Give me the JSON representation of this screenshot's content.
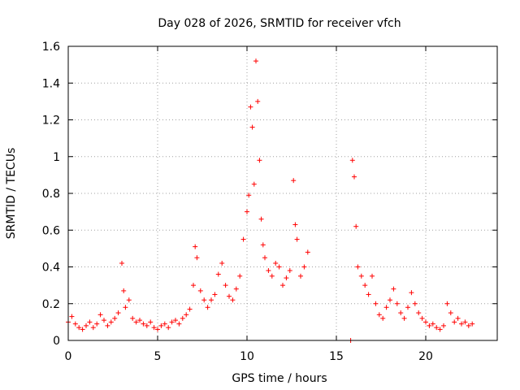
{
  "chart_data": {
    "type": "scatter",
    "title": "Day 028 of 2026, SRMTID for receiver vfch",
    "xlabel": "GPS time / hours",
    "ylabel": "SRMTID / TECUs",
    "xlim": [
      0,
      24
    ],
    "ylim": [
      0,
      1.6
    ],
    "xticks": [
      0,
      5,
      10,
      15,
      20
    ],
    "xtick_labels": [
      "0",
      "5",
      "10",
      "15",
      "20"
    ],
    "yticks": [
      0,
      0.2,
      0.4,
      0.6,
      0.8,
      1.0,
      1.2,
      1.4,
      1.6
    ],
    "ytick_labels": [
      "0",
      "0.2",
      "0.4",
      "0.6",
      "0.8",
      "1",
      "1.2",
      "1.4",
      "1.6"
    ],
    "grid": true,
    "marker": "+",
    "color": "#ff0000",
    "series": [
      {
        "name": "SRMTID",
        "x": [
          0.0,
          0.2,
          0.4,
          0.6,
          0.8,
          1.0,
          1.2,
          1.4,
          1.6,
          1.8,
          2.0,
          2.2,
          2.4,
          2.6,
          2.8,
          3.0,
          3.1,
          3.2,
          3.4,
          3.6,
          3.8,
          4.0,
          4.2,
          4.4,
          4.6,
          4.8,
          5.0,
          5.2,
          5.4,
          5.6,
          5.8,
          6.0,
          6.2,
          6.4,
          6.6,
          6.8,
          7.0,
          7.1,
          7.2,
          7.4,
          7.6,
          7.8,
          8.0,
          8.2,
          8.4,
          8.6,
          8.8,
          9.0,
          9.2,
          9.4,
          9.6,
          9.8,
          10.0,
          10.1,
          10.2,
          10.3,
          10.4,
          10.5,
          10.6,
          10.7,
          10.8,
          10.9,
          11.0,
          11.2,
          11.4,
          11.6,
          11.8,
          12.0,
          12.2,
          12.4,
          12.6,
          12.7,
          12.8,
          13.0,
          13.2,
          13.4,
          15.8,
          15.9,
          16.0,
          16.1,
          16.2,
          16.4,
          16.6,
          16.8,
          17.0,
          17.2,
          17.4,
          17.6,
          17.8,
          18.0,
          18.2,
          18.4,
          18.6,
          18.8,
          19.0,
          19.2,
          19.4,
          19.6,
          19.8,
          20.0,
          20.2,
          20.4,
          20.6,
          20.8,
          21.0,
          21.2,
          21.4,
          21.6,
          21.8,
          22.0,
          22.2,
          22.4,
          22.6
        ],
        "y": [
          0.1,
          0.13,
          0.09,
          0.07,
          0.06,
          0.08,
          0.1,
          0.07,
          0.09,
          0.14,
          0.11,
          0.08,
          0.1,
          0.12,
          0.15,
          0.42,
          0.27,
          0.18,
          0.22,
          0.12,
          0.1,
          0.11,
          0.09,
          0.08,
          0.1,
          0.07,
          0.06,
          0.08,
          0.09,
          0.07,
          0.1,
          0.11,
          0.09,
          0.12,
          0.14,
          0.17,
          0.3,
          0.51,
          0.45,
          0.27,
          0.22,
          0.18,
          0.22,
          0.25,
          0.36,
          0.42,
          0.3,
          0.24,
          0.22,
          0.28,
          0.35,
          0.55,
          0.7,
          0.79,
          1.27,
          1.16,
          0.85,
          1.52,
          1.3,
          0.98,
          0.66,
          0.52,
          0.45,
          0.38,
          0.35,
          0.42,
          0.4,
          0.3,
          0.34,
          0.38,
          0.87,
          0.63,
          0.55,
          0.35,
          0.4,
          0.48,
          0.0,
          0.98,
          0.89,
          0.62,
          0.4,
          0.35,
          0.3,
          0.25,
          0.35,
          0.2,
          0.14,
          0.12,
          0.18,
          0.22,
          0.28,
          0.2,
          0.15,
          0.12,
          0.18,
          0.26,
          0.2,
          0.15,
          0.12,
          0.1,
          0.08,
          0.09,
          0.07,
          0.06,
          0.08,
          0.2,
          0.15,
          0.1,
          0.12,
          0.09,
          0.1,
          0.08,
          0.09
        ]
      }
    ]
  }
}
